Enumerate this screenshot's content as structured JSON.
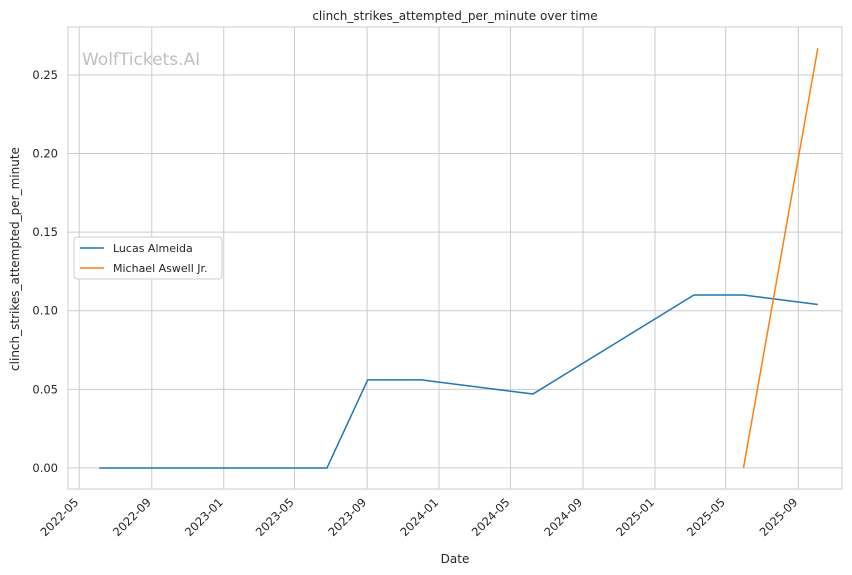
{
  "chart_data": {
    "type": "line",
    "title": "clinch_strikes_attempted_per_minute over time",
    "xlabel": "Date",
    "ylabel": "clinch_strikes_attempted_per_minute",
    "watermark": "WolfTickets.AI",
    "x_ticks": [
      "2022-05",
      "2022-09",
      "2023-01",
      "2023-05",
      "2023-09",
      "2024-01",
      "2024-05",
      "2024-09",
      "2025-01",
      "2025-05",
      "2025-09"
    ],
    "y_ticks": [
      "0.00",
      "0.05",
      "0.10",
      "0.15",
      "0.20",
      "0.25"
    ],
    "xlim": [
      "2022-04-12",
      "2025-11-14"
    ],
    "ylim": [
      -0.0134,
      0.2805
    ],
    "grid": true,
    "legend_position": "center-left",
    "series": [
      {
        "name": "Lucas Almeida",
        "color": "#1f77b4",
        "points": [
          {
            "x": "2022-06-04",
            "y": 0.0
          },
          {
            "x": "2023-06-25",
            "y": 0.0
          },
          {
            "x": "2023-09-02",
            "y": 0.056
          },
          {
            "x": "2023-12-02",
            "y": 0.056
          },
          {
            "x": "2024-06-08",
            "y": 0.047
          },
          {
            "x": "2025-03-08",
            "y": 0.11
          },
          {
            "x": "2025-05-31",
            "y": 0.11
          },
          {
            "x": "2025-10-04",
            "y": 0.104
          }
        ]
      },
      {
        "name": "Michael Aswell Jr.",
        "color": "#ff7f0e",
        "points": [
          {
            "x": "2025-05-31",
            "y": 0.0
          },
          {
            "x": "2025-10-04",
            "y": 0.267
          }
        ]
      }
    ]
  }
}
